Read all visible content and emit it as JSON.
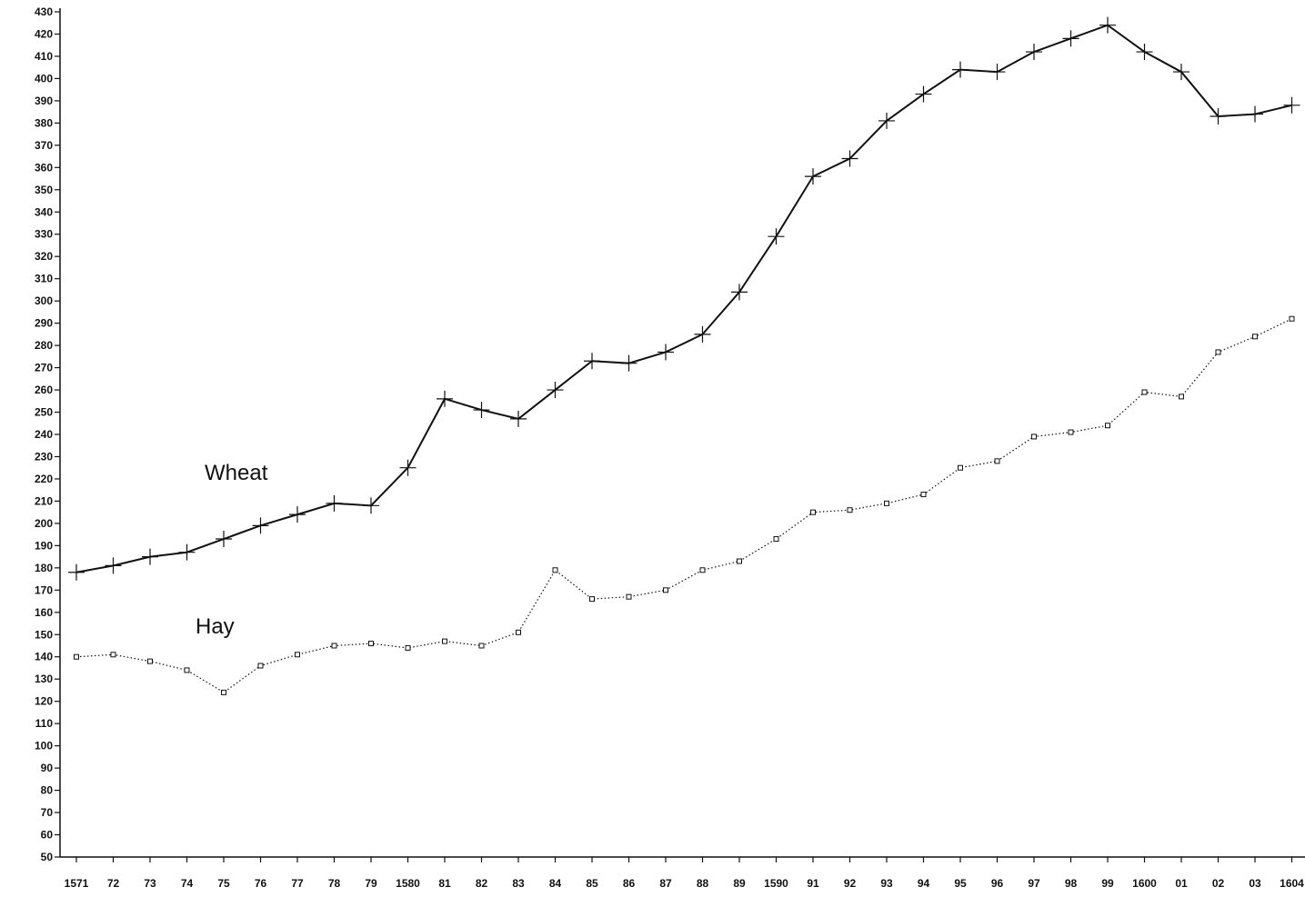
{
  "chart_data": {
    "type": "line",
    "title": "",
    "xlabel": "",
    "ylabel": "",
    "ylim": [
      50,
      430
    ],
    "ytick_step": 10,
    "categories": [
      "1571",
      "72",
      "73",
      "74",
      "75",
      "76",
      "77",
      "78",
      "79",
      "1580",
      "81",
      "82",
      "83",
      "84",
      "85",
      "86",
      "87",
      "88",
      "89",
      "1590",
      "91",
      "92",
      "93",
      "94",
      "95",
      "96",
      "97",
      "98",
      "99",
      "1600",
      "01",
      "02",
      "03",
      "1604"
    ],
    "grid": false,
    "series": [
      {
        "name": "Wheat",
        "marker": "plus",
        "line_style": "solid",
        "values": [
          178,
          181,
          185,
          187,
          193,
          199,
          204,
          209,
          208,
          225,
          256,
          251,
          247,
          260,
          273,
          272,
          277,
          285,
          304,
          329,
          356,
          364,
          381,
          393,
          404,
          403,
          412,
          418,
          424,
          412,
          403,
          383,
          384,
          388
        ]
      },
      {
        "name": "Hay",
        "marker": "square",
        "line_style": "dotted",
        "values": [
          140,
          141,
          138,
          134,
          124,
          136,
          141,
          145,
          146,
          144,
          147,
          145,
          151,
          179,
          166,
          167,
          170,
          179,
          183,
          193,
          205,
          206,
          209,
          213,
          225,
          228,
          239,
          241,
          244,
          259,
          257,
          277,
          284,
          292
        ]
      }
    ],
    "annotations": [
      "Wheat",
      "Hay"
    ]
  }
}
